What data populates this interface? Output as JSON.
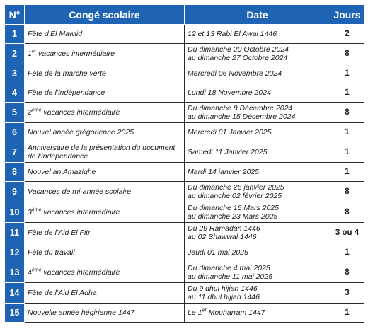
{
  "headers": {
    "num": "N°",
    "event": "Congé scolaire",
    "date": "Date",
    "days": "Jours"
  },
  "rows": [
    {
      "n": "1",
      "event": "Fête d’El Mawlid",
      "date1": "12 et 13 Rabi El Awal 1446",
      "days": "2"
    },
    {
      "n": "2",
      "event_pre": "1",
      "event_sup": "er",
      "event": " vacances intermédiaire",
      "date1": "Du dimanche 20 Octobre 2024",
      "date2": "au dimanche 27 Octobre 2024",
      "days": "8"
    },
    {
      "n": "3",
      "event": "Fête de la marche verte",
      "date1": "Mercredi 06 Novembre 2024",
      "days": "1"
    },
    {
      "n": "4",
      "event": "Fête de l’indépendance",
      "date1": "Lundi 18 Novembre 2024",
      "days": "1"
    },
    {
      "n": "5",
      "event_pre": "2",
      "event_sup": "ème",
      "event": " vacances intermédiaire",
      "date1": "Du dimanche 8 Décembre 2024",
      "date2": "au dimanche 15 Décembre 2024",
      "days": "8"
    },
    {
      "n": "6",
      "event": "Nouvel année grégorienne 2025",
      "date1": "Mercredi 01 Janvier 2025",
      "days": "1"
    },
    {
      "n": "7",
      "event": "Anniversaire de la présentation du document",
      "event2": "de l’indépendance",
      "date1": "Samedi 11 Janvier 2025",
      "days": "1"
    },
    {
      "n": "8",
      "event": "Nouvel an Amazighe",
      "date1": "Mardi 14 janvier 2025",
      "days": "1"
    },
    {
      "n": "9",
      "event": "Vacances de mi-année scolaire",
      "date1": "Du dimanche 26 janvier 2025",
      "date2": "au dimanche 02 février 2025",
      "days": "8"
    },
    {
      "n": "10",
      "event_pre": "3",
      "event_sup": "ème",
      "event": " vacances intermédiaire",
      "date1": "Du dimanche 16 Mars 2025",
      "date2": "au dimanche 23 Mars 2025",
      "days": "8"
    },
    {
      "n": "11",
      "event": "Fête de l’Aid El Fitr",
      "date1": "Du 29 Ramadan 1446",
      "date2": "au 02 Shawwal 1446",
      "days": "3 ou 4"
    },
    {
      "n": "12",
      "event": "Fête du travail",
      "date1": "Jeudi 01 mai 2025",
      "days": "1"
    },
    {
      "n": "13",
      "event_pre": "4",
      "event_sup": "ème",
      "event": " vacances intermédiaire",
      "date1": "Du dimanche 4 mai 2025",
      "date2": "au dimanche 11 mai 2025",
      "days": "8"
    },
    {
      "n": "14",
      "event": "Fête de l’Aid El Adha",
      "date1": "Du 9 dhul hijjah 1446",
      "date2": "au 11 dhul hijjah 1446",
      "days": "3"
    },
    {
      "n": "15",
      "event": "Nouvelle année hégirienne 1447",
      "date1_pre": "Le 1",
      "date1_sup": "er",
      "date1": " Mouharram 1447",
      "days": "1"
    }
  ]
}
